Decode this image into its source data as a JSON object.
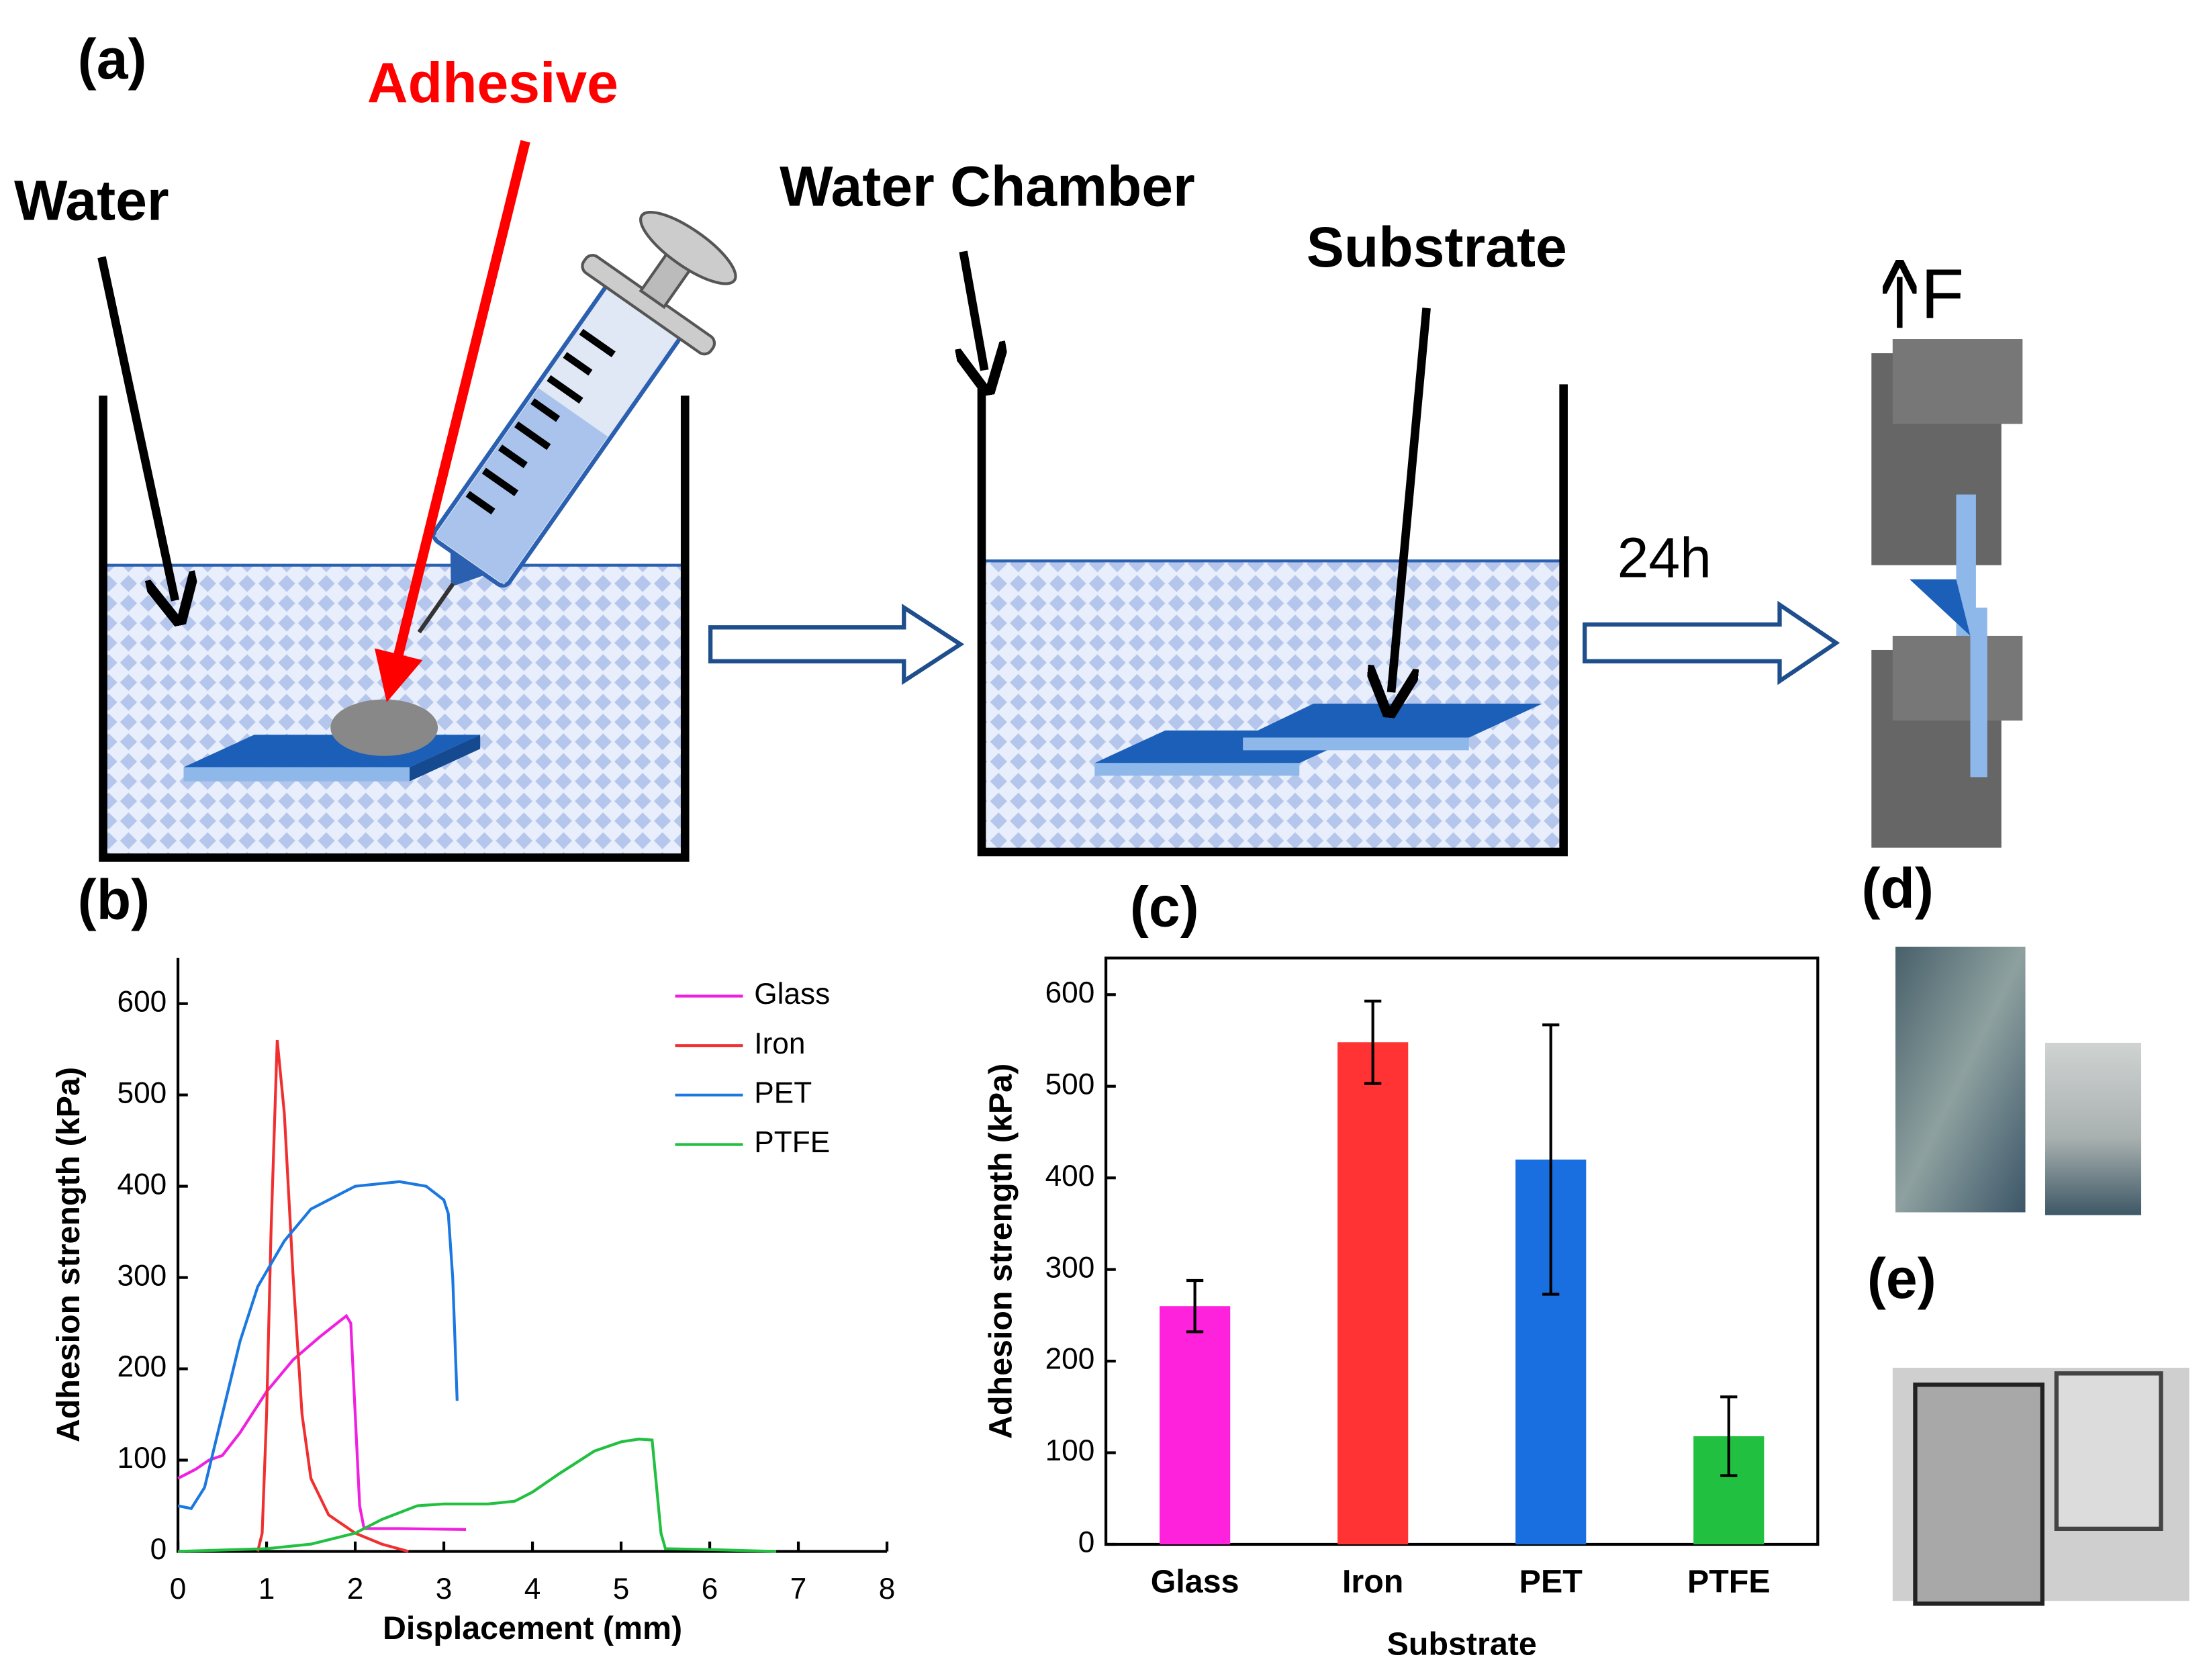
{
  "panel_labels": [
    "(a)",
    "(b)",
    "(c)",
    "(d)",
    "(e)"
  ],
  "diagram": {
    "adhesive": "Adhesive",
    "water": "Water",
    "water_chamber": "Water Chamber",
    "substrate": "Substrate",
    "time": "24h",
    "force": "F"
  },
  "chart_data": [
    {
      "type": "line",
      "xlabel": "Displacement (mm)",
      "ylabel": "Adhesion strength (kPa)",
      "xlim": [
        0,
        8
      ],
      "ylim": [
        0,
        650
      ],
      "xticks": [
        0,
        1,
        2,
        3,
        4,
        5,
        6,
        7,
        8
      ],
      "yticks": [
        0,
        100,
        200,
        300,
        400,
        500,
        600
      ],
      "legend": "upper right",
      "series": [
        {
          "name": "Glass",
          "color": "#f020e0",
          "x": [
            0,
            0.2,
            0.35,
            0.5,
            0.7,
            1.0,
            1.3,
            1.6,
            1.9,
            1.95,
            2.0,
            2.05,
            2.1,
            2.5,
            3.25
          ],
          "y": [
            80,
            90,
            100,
            105,
            130,
            175,
            210,
            235,
            258,
            250,
            150,
            50,
            25,
            25,
            24
          ]
        },
        {
          "name": "Iron",
          "color": "#f03030",
          "x": [
            0.9,
            0.95,
            1.0,
            1.05,
            1.12,
            1.2,
            1.3,
            1.4,
            1.5,
            1.7,
            2.0,
            2.3,
            2.6
          ],
          "y": [
            0,
            20,
            150,
            350,
            560,
            480,
            300,
            150,
            80,
            40,
            20,
            8,
            0
          ]
        },
        {
          "name": "PET",
          "color": "#1a78e0",
          "x": [
            0,
            0.15,
            0.3,
            0.5,
            0.7,
            0.9,
            1.2,
            1.5,
            2.0,
            2.5,
            2.8,
            3.0,
            3.05,
            3.1,
            3.15
          ],
          "y": [
            50,
            47,
            70,
            150,
            230,
            290,
            340,
            375,
            400,
            405,
            400,
            385,
            370,
            300,
            165
          ]
        },
        {
          "name": "PTFE",
          "color": "#22c040",
          "x": [
            0,
            1,
            1.5,
            2.0,
            2.3,
            2.7,
            3.0,
            3.5,
            3.8,
            4.0,
            4.3,
            4.7,
            5.0,
            5.2,
            5.35,
            5.45,
            5.5,
            6,
            6.75
          ],
          "y": [
            0,
            3,
            8,
            20,
            35,
            50,
            52,
            52,
            55,
            65,
            85,
            110,
            120,
            123,
            122,
            20,
            3,
            2,
            0
          ]
        }
      ]
    },
    {
      "type": "bar",
      "xlabel": "Substrate",
      "ylabel": "Adhesion strength (kPa)",
      "ylim": [
        0,
        640
      ],
      "yticks": [
        0,
        100,
        200,
        300,
        400,
        500,
        600
      ],
      "categories": [
        "Glass",
        "Iron",
        "PET",
        "PTFE"
      ],
      "values": [
        260,
        548,
        420,
        118
      ],
      "errors": [
        28,
        45,
        147,
        43
      ],
      "colors": [
        "#ff22dd",
        "#ff3333",
        "#1a6fe0",
        "#22c040"
      ]
    }
  ]
}
